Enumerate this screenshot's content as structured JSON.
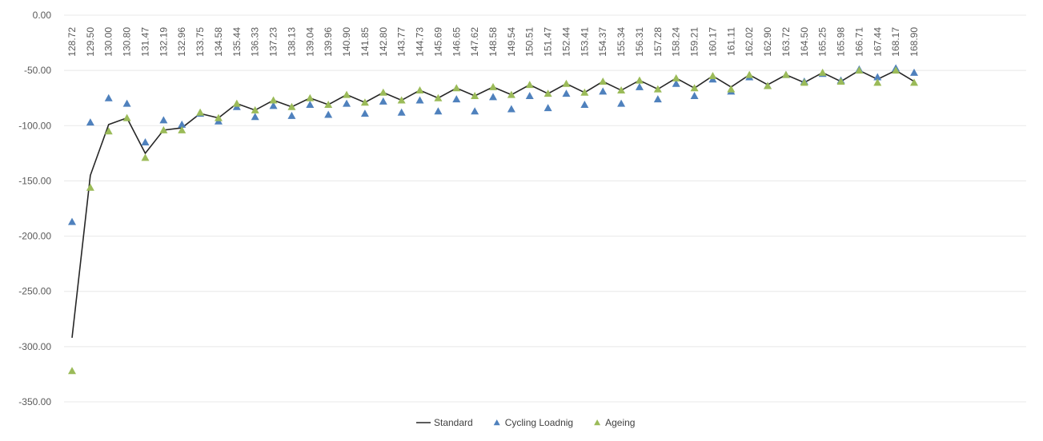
{
  "chart_data": {
    "type": "line",
    "title": "",
    "xlabel": "",
    "ylabel": "",
    "ylim": [
      -350,
      0
    ],
    "y_ticks": [
      "0.00",
      "-50.00",
      "-100.00",
      "-150.00",
      "-200.00",
      "-250.00",
      "-300.00",
      "-350.00"
    ],
    "y_tick_values": [
      0,
      -50,
      -100,
      -150,
      -200,
      -250,
      -300,
      -350
    ],
    "x_axis_position": "top",
    "grid": true,
    "legend_position": "bottom",
    "categories": [
      "128.72",
      "129.50",
      "130.00",
      "130.80",
      "131.47",
      "132.19",
      "132.96",
      "133.75",
      "134.58",
      "135.44",
      "136.33",
      "137.23",
      "138.13",
      "139.04",
      "139.96",
      "140.90",
      "141.85",
      "142.80",
      "143.77",
      "144.73",
      "145.69",
      "146.65",
      "147.62",
      "148.58",
      "149.54",
      "150.51",
      "151.47",
      "152.44",
      "153.41",
      "154.37",
      "155.34",
      "156.31",
      "157.28",
      "158.24",
      "159.21",
      "160.17",
      "161.11",
      "162.02",
      "162.90",
      "163.72",
      "164.50",
      "165.25",
      "165.98",
      "166.71",
      "167.44",
      "168.17",
      "168.90"
    ],
    "series": [
      {
        "name": "Standard",
        "kind": "line",
        "color": "#262626",
        "values": [
          -292,
          -145,
          -99,
          -93,
          -125,
          -104,
          -102,
          -89,
          -93,
          -80,
          -86,
          -77,
          -83,
          -75,
          -81,
          -72,
          -79,
          -70,
          -77,
          -68,
          -75,
          -66,
          -73,
          -65,
          -72,
          -63,
          -71,
          -62,
          -70,
          -60,
          -68,
          -59,
          -67,
          -57,
          -66,
          -55,
          -65,
          -54,
          -63,
          -54,
          -61,
          -52,
          -60,
          -50,
          -58,
          -50,
          -60
        ]
      },
      {
        "name": "Cycling Loadnig",
        "kind": "marker",
        "marker": "triangle",
        "color": "#4f81bd",
        "values": [
          -187,
          -97,
          -75,
          -80,
          -115,
          -95,
          -99,
          -89,
          -96,
          -83,
          -92,
          -82,
          -91,
          -81,
          -90,
          -80,
          -89,
          -78,
          -88,
          -77,
          -87,
          -76,
          -87,
          -74,
          -85,
          -73,
          -84,
          -71,
          -81,
          -69,
          -80,
          -65,
          -76,
          -62,
          -73,
          -58,
          -69,
          -56,
          -64,
          -54,
          -60,
          -53,
          -59,
          -49,
          -56,
          -48,
          -52
        ]
      },
      {
        "name": "Ageing",
        "kind": "marker",
        "marker": "triangle",
        "color": "#9bbb59",
        "values": [
          -322,
          -156,
          -105,
          -93,
          -129,
          -104,
          -104,
          -88,
          -93,
          -80,
          -86,
          -77,
          -83,
          -75,
          -81,
          -72,
          -79,
          -70,
          -77,
          -68,
          -75,
          -66,
          -73,
          -65,
          -72,
          -63,
          -71,
          -62,
          -70,
          -60,
          -68,
          -59,
          -67,
          -57,
          -66,
          -55,
          -67,
          -54,
          -64,
          -54,
          -61,
          -52,
          -60,
          -50,
          -61,
          -50,
          -61
        ]
      }
    ]
  }
}
